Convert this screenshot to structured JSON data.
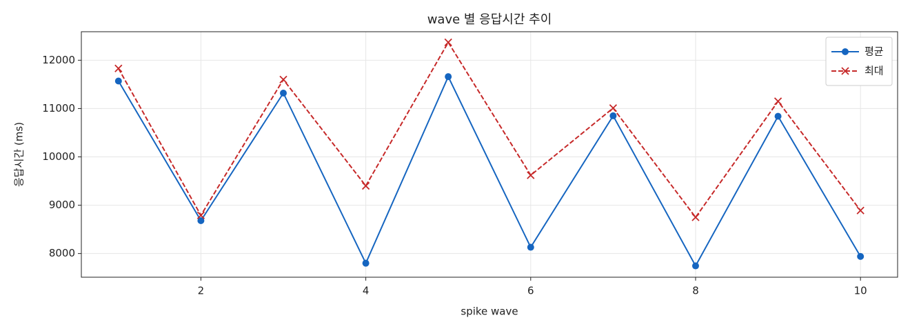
{
  "chart_data": {
    "type": "line",
    "title": "wave 별 응답시간 추이",
    "x_label": "spike wave",
    "y_label": "응답시간 (ms)",
    "x": [
      1,
      2,
      3,
      4,
      5,
      6,
      7,
      8,
      9,
      10
    ],
    "series": [
      {
        "name": "평균",
        "color": "#1565c0",
        "marker": "circle",
        "dash": "solid",
        "values": [
          11570,
          8680,
          11320,
          7800,
          11660,
          8130,
          10850,
          7745,
          10840,
          7940
        ]
      },
      {
        "name": "최대",
        "color": "#c62828",
        "marker": "x",
        "dash": "dashed",
        "values": [
          11830,
          8790,
          11600,
          9400,
          12370,
          9620,
          11010,
          8750,
          11150,
          8890
        ]
      }
    ],
    "xlim": [
      0.55,
      10.45
    ],
    "xticks": [
      2,
      4,
      6,
      8,
      10
    ],
    "ylim": [
      7510,
      12590
    ],
    "yticks": [
      8000,
      9000,
      10000,
      11000,
      12000
    ],
    "grid": true,
    "legend": "upper-right"
  }
}
